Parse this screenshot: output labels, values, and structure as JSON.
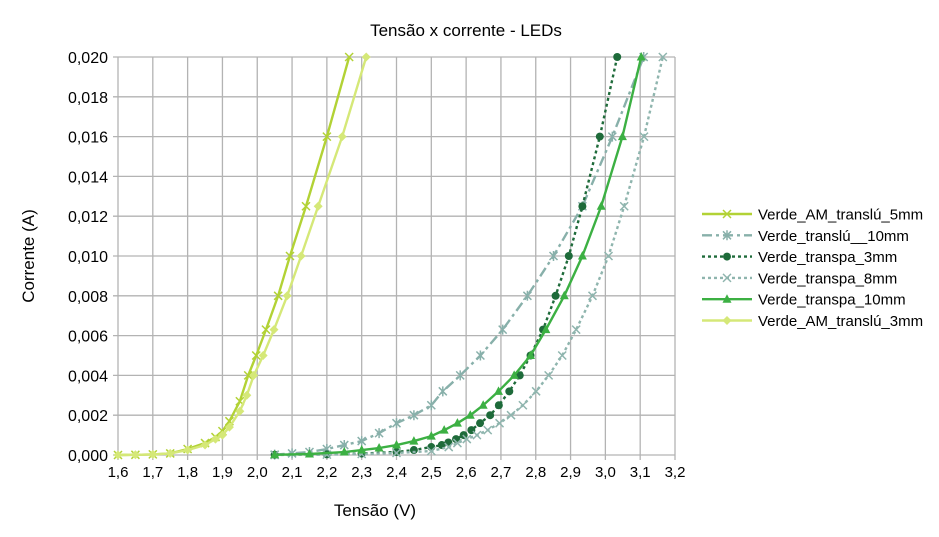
{
  "chart_data": {
    "type": "line",
    "title": "Tensão x corrente - LEDs",
    "xlabel": "Tensão (V)",
    "ylabel": "Corrente (A)",
    "xlim": [
      1.6,
      3.2
    ],
    "ylim": [
      0,
      0.02
    ],
    "x_ticks": [
      "1,6",
      "1,7",
      "1,8",
      "1,9",
      "2,0",
      "2,1",
      "2,2",
      "2,3",
      "2,4",
      "2,5",
      "2,6",
      "2,7",
      "2,8",
      "2,9",
      "3,0",
      "3,1",
      "3,2"
    ],
    "y_ticks": [
      "0,000",
      "0,002",
      "0,004",
      "0,006",
      "0,008",
      "0,010",
      "0,012",
      "0,014",
      "0,016",
      "0,018",
      "0,020"
    ],
    "grid": true,
    "legend_position": "right",
    "series": [
      {
        "name": "Verde_AM_translú_5mm",
        "color": "#b2d235",
        "marker": "x",
        "dash": "solid",
        "x": [
          1.6,
          1.65,
          1.7,
          1.75,
          1.8,
          1.85,
          1.88,
          1.9,
          1.92,
          1.95,
          1.974,
          1.997,
          2.025,
          2.06,
          2.094,
          2.14,
          2.2,
          2.264
        ],
        "y": [
          0,
          1e-05,
          3e-05,
          8e-05,
          0.0003,
          0.0006,
          0.0009,
          0.0012,
          0.0017,
          0.0027,
          0.004,
          0.005,
          0.0063,
          0.008,
          0.01,
          0.0125,
          0.016,
          0.02
        ]
      },
      {
        "name": "Verde_translú__10mm",
        "color": "#88b0aa",
        "marker": "asterisk",
        "dash": "dashdot",
        "x": [
          2.05,
          2.1,
          2.15,
          2.2,
          2.25,
          2.3,
          2.35,
          2.4,
          2.45,
          2.5,
          2.533,
          2.583,
          2.641,
          2.705,
          2.776,
          2.851,
          2.934,
          3.02,
          3.11
        ],
        "y": [
          2e-05,
          8e-05,
          0.00015,
          0.0003,
          0.0005,
          0.0007,
          0.0011,
          0.0016,
          0.002,
          0.0025,
          0.0032,
          0.004,
          0.005,
          0.0063,
          0.008,
          0.01,
          0.0125,
          0.016,
          0.02
        ]
      },
      {
        "name": "Verde_transpa_3mm",
        "color": "#1e6b3a",
        "marker": "circle",
        "dash": "dot",
        "x": [
          2.05,
          2.2,
          2.3,
          2.4,
          2.45,
          2.5,
          2.53,
          2.549,
          2.571,
          2.593,
          2.615,
          2.64,
          2.669,
          2.694,
          2.724,
          2.754,
          2.785,
          2.821,
          2.857,
          2.895,
          2.934,
          2.984,
          3.034
        ],
        "y": [
          1e-05,
          3e-05,
          7e-05,
          0.00015,
          0.00025,
          0.0004,
          0.0005,
          0.00063,
          0.0008,
          0.001,
          0.00125,
          0.0016,
          0.002,
          0.0025,
          0.0032,
          0.004,
          0.005,
          0.0063,
          0.008,
          0.01,
          0.0125,
          0.016,
          0.02
        ]
      },
      {
        "name": "Verde_transpa_8mm",
        "color": "#8fb5ae",
        "marker": "x",
        "dash": "dot",
        "x": [
          2.05,
          2.2,
          2.3,
          2.4,
          2.5,
          2.55,
          2.575,
          2.602,
          2.631,
          2.662,
          2.696,
          2.729,
          2.763,
          2.801,
          2.837,
          2.876,
          2.916,
          2.963,
          3.009,
          3.054,
          3.111,
          3.165
        ],
        "y": [
          0,
          2e-05,
          5e-05,
          0.0001,
          0.0002,
          0.0004,
          0.0006,
          0.0008,
          0.001,
          0.00125,
          0.0016,
          0.002,
          0.0025,
          0.0032,
          0.004,
          0.005,
          0.0063,
          0.008,
          0.01,
          0.0125,
          0.016,
          0.02
        ]
      },
      {
        "name": "Verde_transpa_10mm",
        "color": "#3cb043",
        "marker": "triangle",
        "dash": "solid",
        "x": [
          2.05,
          2.15,
          2.25,
          2.3,
          2.35,
          2.4,
          2.45,
          2.5,
          2.537,
          2.575,
          2.612,
          2.649,
          2.693,
          2.738,
          2.785,
          2.829,
          2.882,
          2.934,
          2.988,
          3.049,
          3.103
        ],
        "y": [
          1e-05,
          5e-05,
          0.00015,
          0.00025,
          0.00035,
          0.0005,
          0.0007,
          0.00095,
          0.00125,
          0.0016,
          0.002,
          0.0025,
          0.0032,
          0.004,
          0.005,
          0.0063,
          0.008,
          0.01,
          0.0125,
          0.016,
          0.02
        ]
      },
      {
        "name": "Verde_AM_translú_3mm",
        "color": "#d5e878",
        "marker": "diamond",
        "dash": "solid",
        "x": [
          1.6,
          1.65,
          1.7,
          1.75,
          1.8,
          1.85,
          1.88,
          1.9,
          1.92,
          1.95,
          1.97,
          1.99,
          2.017,
          2.048,
          2.086,
          2.126,
          2.175,
          2.244,
          2.313
        ],
        "y": [
          0,
          1e-05,
          3e-05,
          8e-05,
          0.00025,
          0.0005,
          0.0008,
          0.001,
          0.0014,
          0.0022,
          0.003,
          0.004,
          0.005,
          0.0063,
          0.008,
          0.01,
          0.0125,
          0.016,
          0.02
        ]
      }
    ]
  }
}
